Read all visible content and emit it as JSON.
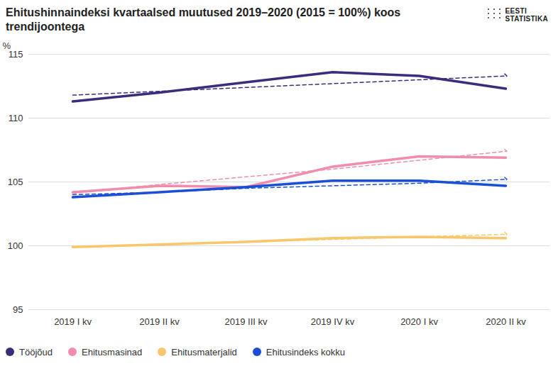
{
  "chart_data": {
    "type": "line",
    "title": "Ehitushinnaindeksi kvartaalsed muutused 2019–2020 (2015 = 100%) koos trendijoontega",
    "brand": "EESTI STATISTIKA",
    "y_label": "%",
    "categories": [
      "2019 I kv",
      "2019 II kv",
      "2019 III kv",
      "2019 IV kv",
      "2020 I kv",
      "2020 II kv"
    ],
    "series": [
      {
        "name": "Tööjõud",
        "color": "#3d2b7c",
        "line_style": "solid",
        "values": [
          111.3,
          112.0,
          112.8,
          113.6,
          113.3,
          112.3
        ]
      },
      {
        "name": "Ehitusmasinad",
        "color": "#f08cae",
        "line_style": "solid",
        "values": [
          104.2,
          104.7,
          104.6,
          106.2,
          107.0,
          106.9
        ]
      },
      {
        "name": "Ehitusmaterjalid",
        "color": "#f9c66b",
        "line_style": "solid",
        "values": [
          99.9,
          100.1,
          100.3,
          100.6,
          100.7,
          100.6
        ]
      },
      {
        "name": "Ehitusindeks kokku",
        "color": "#1a4fd6",
        "line_style": "solid",
        "values": [
          103.8,
          104.2,
          104.6,
          105.1,
          105.1,
          104.7
        ]
      },
      {
        "color": "#3d2b7c",
        "line_style": "dashed",
        "marker": "arrow",
        "values": [
          111.8,
          112.1,
          112.4,
          112.7,
          113.0,
          113.3
        ]
      },
      {
        "color": "#f08cae",
        "line_style": "dashed",
        "marker": "arrow",
        "values": [
          104.1,
          104.8,
          105.4,
          106.0,
          106.7,
          107.4
        ]
      },
      {
        "color": "#f9c66b",
        "line_style": "dashed",
        "marker": "arrow",
        "values": [
          99.9,
          100.1,
          100.3,
          100.5,
          100.7,
          100.9
        ]
      },
      {
        "color": "#1a4fd6",
        "line_style": "dashed",
        "marker": "arrow",
        "values": [
          104.0,
          104.2,
          104.5,
          104.7,
          104.9,
          105.2
        ]
      }
    ],
    "ylim": [
      95,
      115
    ],
    "yticks": [
      95,
      100,
      105,
      110,
      115
    ],
    "grid": true,
    "legend": "bottom"
  }
}
